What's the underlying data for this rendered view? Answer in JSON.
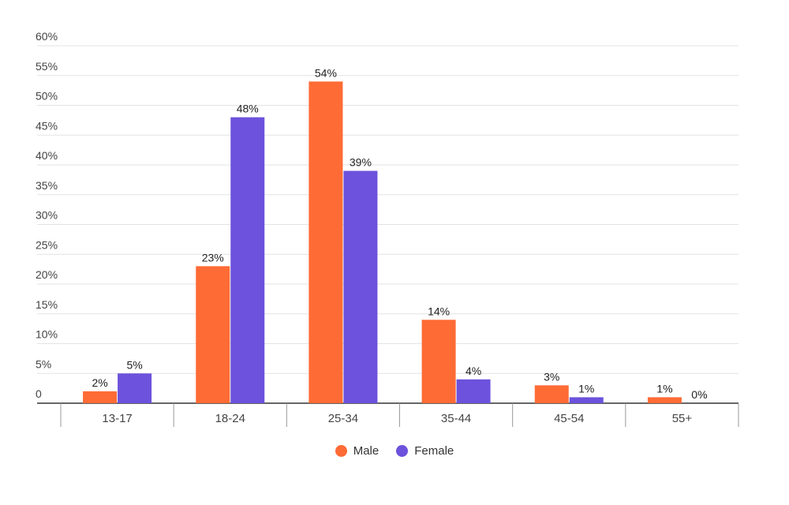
{
  "chart_data": {
    "type": "bar",
    "categories": [
      "13-17",
      "18-24",
      "25-34",
      "35-44",
      "45-54",
      "55+"
    ],
    "series": [
      {
        "name": "Male",
        "values": [
          2,
          23,
          54,
          14,
          3,
          1
        ],
        "labels": [
          "2%",
          "23%",
          "54%",
          "14%",
          "3%",
          "1%"
        ],
        "color": "#ff6b35"
      },
      {
        "name": "Female",
        "values": [
          5,
          48,
          39,
          4,
          1,
          0
        ],
        "labels": [
          "5%",
          "48%",
          "39%",
          "4%",
          "1%",
          "0%"
        ],
        "color": "#6c52dc"
      }
    ],
    "ylim": [
      0,
      60
    ],
    "yticks": [
      0,
      5,
      10,
      15,
      20,
      25,
      30,
      35,
      40,
      45,
      50,
      55,
      60
    ],
    "ytick_labels": [
      "0",
      "5%",
      "10%",
      "15%",
      "20%",
      "25%",
      "30%",
      "35%",
      "40%",
      "45%",
      "50%",
      "55%",
      "60%"
    ],
    "grid": true,
    "legend_position": "bottom"
  }
}
